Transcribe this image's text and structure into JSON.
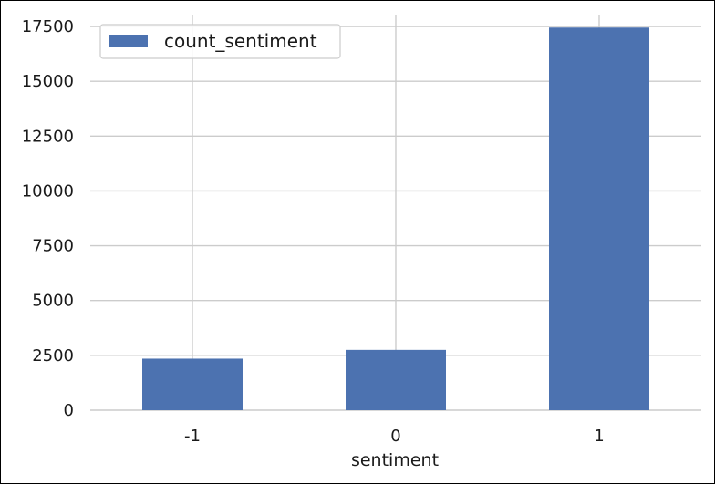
{
  "chart_data": {
    "type": "bar",
    "categories": [
      "-1",
      "0",
      "1"
    ],
    "series": [
      {
        "name": "count_sentiment",
        "values": [
          2350,
          2750,
          17450
        ],
        "color": "#4c72b0"
      }
    ],
    "xlabel": "sentiment",
    "ylabel": "",
    "title": "",
    "ylim": [
      0,
      18000
    ],
    "yticks": [
      0,
      2500,
      5000,
      7500,
      10000,
      12500,
      15000,
      17500
    ],
    "ytick_labels": [
      "0",
      "2500",
      "5000",
      "7500",
      "10000",
      "12500",
      "15000",
      "17500"
    ],
    "grid": true,
    "grid_color": "#cccccc",
    "legend_position": "top-left"
  }
}
